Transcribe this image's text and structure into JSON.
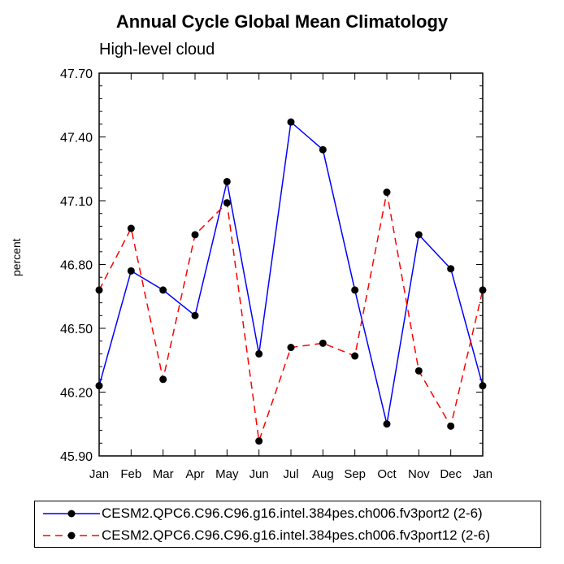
{
  "chart_data": {
    "type": "line",
    "title": "Annual Cycle Global Mean Climatology",
    "subtitle": "High-level cloud",
    "xlabel": "",
    "ylabel": "percent",
    "categories": [
      "Jan",
      "Feb",
      "Mar",
      "Apr",
      "May",
      "Jun",
      "Jul",
      "Aug",
      "Sep",
      "Oct",
      "Nov",
      "Dec",
      "Jan"
    ],
    "ylim": [
      45.9,
      47.7
    ],
    "yticks": [
      "45.90",
      "46.20",
      "46.50",
      "46.80",
      "47.10",
      "47.40",
      "47.70"
    ],
    "series": [
      {
        "name": "CESM2.QPC6.C96.C96.g16.intel.384pes.ch006.fv3port2 (2-6)",
        "color": "#0000ff",
        "dash": "solid",
        "values": [
          46.23,
          46.77,
          46.68,
          46.56,
          47.19,
          46.38,
          47.47,
          47.34,
          46.68,
          46.05,
          46.94,
          46.78,
          46.23
        ]
      },
      {
        "name": "CESM2.QPC6.C96.C96.g16.intel.384pes.ch006.fv3port12 (2-6)",
        "color": "#ff0000",
        "dash": "dashed",
        "values": [
          46.68,
          46.97,
          46.26,
          46.94,
          47.09,
          45.97,
          46.41,
          46.43,
          46.37,
          47.14,
          46.3,
          46.04,
          46.68
        ]
      }
    ],
    "legend_position": "bottom"
  }
}
